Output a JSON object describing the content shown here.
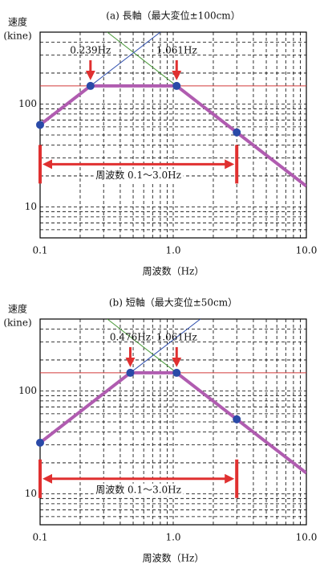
{
  "chart_data": [
    {
      "type": "line",
      "title": "(a) 長軸（最大変位±100cm）",
      "ylabel_lines": [
        "速度",
        "(kine)"
      ],
      "xlabel": "周波数（Hz）",
      "xscale": "log",
      "yscale": "log",
      "xlim": [
        0.1,
        10
      ],
      "ylim": [
        5,
        500
      ],
      "xticks": [
        0.1,
        {
          "value": 1,
          "label": "1.0"
        },
        {
          "value": 10,
          "label": "10.0"
        }
      ],
      "yticks": [
        10,
        100
      ],
      "x_minor_grid": [
        0.2,
        0.3,
        0.4,
        0.5,
        0.6,
        0.7,
        0.8,
        0.9,
        2,
        3,
        4,
        5,
        6,
        7,
        8,
        9
      ],
      "y_minor_grid": [
        6,
        7,
        8,
        9,
        20,
        30,
        40,
        50,
        60,
        70,
        80,
        90,
        200,
        300,
        400
      ],
      "grid": true,
      "series": [
        {
          "color": "#d23a3a",
          "x": [
            0.1,
            10
          ],
          "values": [
            150,
            150
          ]
        },
        {
          "color": "#4a9a3a",
          "x": [
            0.32,
            1.061
          ],
          "values": [
            500,
            150
          ]
        },
        {
          "color": "#2f4fae",
          "x": [
            0.239,
            0.8
          ],
          "values": [
            150,
            500
          ]
        },
        {
          "color": "#b05cb0",
          "x": [
            0.1,
            0.239,
            1.061,
            10
          ],
          "values": [
            62.8,
            150,
            150,
            15.9
          ]
        },
        {
          "color": "#2a4aa8",
          "marker": true,
          "x": [
            0.1,
            0.239,
            1.061,
            3.0
          ],
          "values": [
            62.8,
            150,
            150,
            53
          ]
        }
      ],
      "annotations": [
        {
          "text": "0.239Hz",
          "x": 0.239,
          "y": 150
        },
        {
          "text": "1.061Hz",
          "x": 1.061,
          "y": 150
        }
      ],
      "range": {
        "text": "周波数 0.1～3.0Hz",
        "x": [
          0.1,
          3.0
        ],
        "y": 26
      }
    },
    {
      "type": "line",
      "title": "(b) 短軸（最大変位±50cm）",
      "ylabel_lines": [
        "速度",
        "(kine)"
      ],
      "xlabel": "周波数（Hz）",
      "xscale": "log",
      "yscale": "log",
      "xlim": [
        0.1,
        10
      ],
      "ylim": [
        5,
        500
      ],
      "xticks": [
        0.1,
        {
          "value": 1,
          "label": "1.0"
        },
        {
          "value": 10,
          "label": "10.0"
        }
      ],
      "yticks": [
        10,
        100
      ],
      "x_minor_grid": [
        0.2,
        0.3,
        0.4,
        0.5,
        0.6,
        0.7,
        0.8,
        0.9,
        2,
        3,
        4,
        5,
        6,
        7,
        8,
        9
      ],
      "y_minor_grid": [
        6,
        7,
        8,
        9,
        20,
        30,
        40,
        50,
        60,
        70,
        80,
        90,
        200,
        300,
        400
      ],
      "grid": true,
      "series": [
        {
          "color": "#d23a3a",
          "x": [
            0.1,
            10
          ],
          "values": [
            150,
            150
          ]
        },
        {
          "color": "#4a9a3a",
          "x": [
            0.32,
            1.061
          ],
          "values": [
            500,
            150
          ]
        },
        {
          "color": "#2f4fae",
          "x": [
            0.476,
            1.6
          ],
          "values": [
            150,
            500
          ]
        },
        {
          "color": "#b05cb0",
          "x": [
            0.1,
            0.476,
            1.061,
            10
          ],
          "values": [
            31.4,
            150,
            150,
            15.9
          ]
        },
        {
          "color": "#2a4aa8",
          "marker": true,
          "x": [
            0.1,
            0.476,
            1.061,
            3.0
          ],
          "values": [
            31.4,
            150,
            150,
            53
          ]
        }
      ],
      "annotations": [
        {
          "text": "0.476Hz",
          "x": 0.476,
          "y": 150
        },
        {
          "text": "1.061Hz",
          "x": 1.061,
          "y": 150
        }
      ],
      "range": {
        "text": "周波数 0.1～3.0Hz",
        "x": [
          0.1,
          3.0
        ],
        "y": 14
      }
    }
  ]
}
